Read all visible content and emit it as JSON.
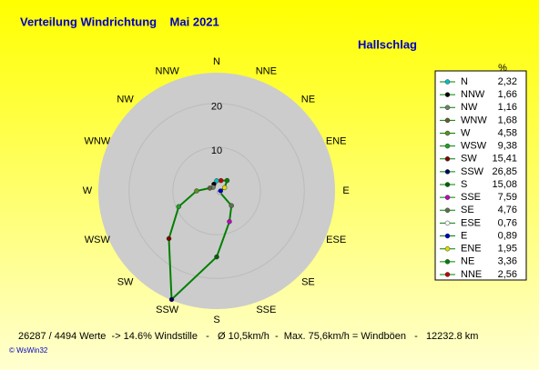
{
  "chart_data": {
    "type": "windrose",
    "title": "Verteilung Windrichtung    Mai 2021",
    "subtitle": "Hallschlag",
    "legend_header": "%",
    "categories": [
      "N",
      "NNW",
      "NW",
      "WNW",
      "W",
      "WSW",
      "SW",
      "SSW",
      "S",
      "SSE",
      "SE",
      "ESE",
      "E",
      "ENE",
      "NE",
      "NNE"
    ],
    "values": [
      2.32,
      1.66,
      1.16,
      1.68,
      4.58,
      9.38,
      15.41,
      26.85,
      15.08,
      7.59,
      4.76,
      0.76,
      0.89,
      1.95,
      3.36,
      2.56
    ],
    "value_labels": [
      "2,32",
      "1,66",
      "1,16",
      "1,68",
      "4,58",
      "9,38",
      "15,41",
      "26,85",
      "15,08",
      "7,59",
      "4,76",
      "0,76",
      "0,89",
      "1,95",
      "3,36",
      "2,56"
    ],
    "colors": [
      "#00c0c0",
      "#000000",
      "#708070",
      "#606030",
      "#609020",
      "#20a020",
      "#800000",
      "#000060",
      "#006000",
      "#c000c0",
      "#607050",
      "#ffffff",
      "#0000c0",
      "#e0e000",
      "#008000",
      "#c00000"
    ],
    "line_color": "#008000",
    "rlim": [
      0,
      27
    ],
    "rticks": [
      10,
      20
    ],
    "footer": "26287 / 4494 Werte  -> 14.6% Windstille   -   Ø 10,5km/h  -  Max. 75,6km/h = Windböen   -   12232.8 km",
    "credit": "© WsWin32"
  }
}
